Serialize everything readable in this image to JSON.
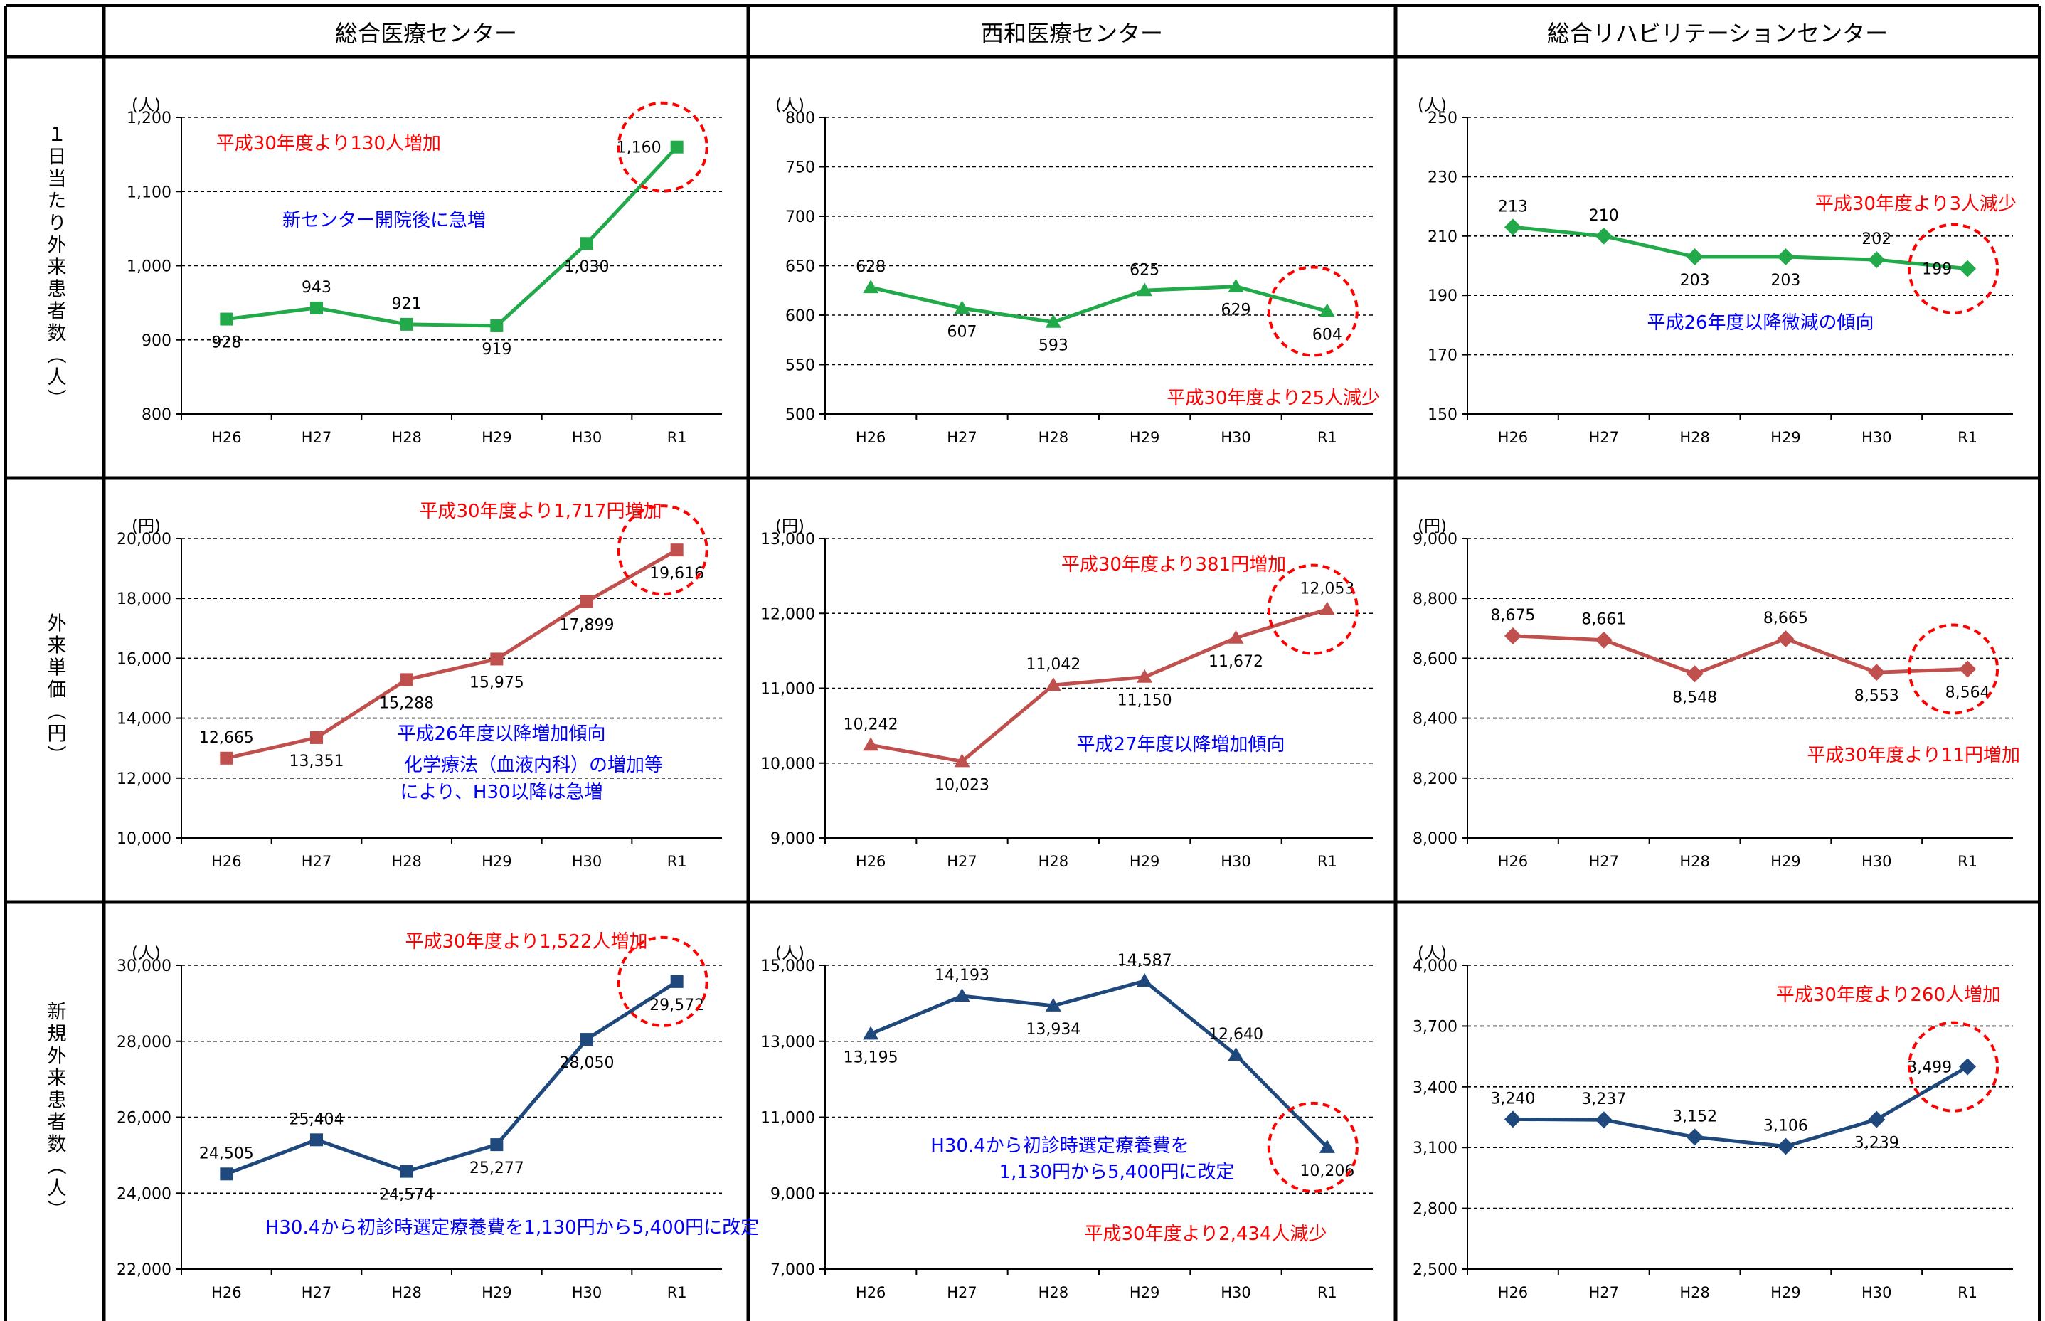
{
  "columns": [
    "総合医療センター",
    "西和医療センター",
    "総合リハビリテーションセンター"
  ],
  "rows": [
    {
      "label": "１日当たり外来患者数（人）"
    },
    {
      "label": "外来単価（円）"
    },
    {
      "label": "新規外来患者数（人）"
    }
  ],
  "colors": {
    "green": "#21a94a",
    "red": "#c0504d",
    "blue": "#1f497d",
    "annot_red": "#ff0000",
    "annot_blue": "#0000ff",
    "circle": "#ff0000"
  },
  "chart_data": [
    {
      "type": "line",
      "row": 0,
      "col": 0,
      "unit": "(人)",
      "categories": [
        "H26",
        "H27",
        "H28",
        "H29",
        "H30",
        "R1"
      ],
      "values": [
        928,
        943,
        921,
        919,
        1030,
        1160
      ],
      "labels": [
        "928",
        "943",
        "921",
        "919",
        "1,030",
        "1,160"
      ],
      "ylim": [
        800,
        1200
      ],
      "ticks": [
        800,
        900,
        1000,
        1100,
        1200
      ],
      "tick_labels": [
        "800",
        "900",
        "1,000",
        "1,100",
        "1,200"
      ],
      "marker": "square",
      "color": "green",
      "circled": 5,
      "annotations": [
        {
          "text": "平成30年度より130人増加",
          "color": "red"
        },
        {
          "text": "新センター開院後に急増",
          "color": "blue"
        }
      ]
    },
    {
      "type": "line",
      "row": 0,
      "col": 1,
      "unit": "(人)",
      "categories": [
        "H26",
        "H27",
        "H28",
        "H29",
        "H30",
        "R1"
      ],
      "values": [
        628,
        607,
        593,
        625,
        629,
        604
      ],
      "labels": [
        "628",
        "607",
        "593",
        "625",
        "629",
        "604"
      ],
      "ylim": [
        500,
        800
      ],
      "ticks": [
        500,
        550,
        600,
        650,
        700,
        750,
        800
      ],
      "tick_labels": [
        "500",
        "550",
        "600",
        "650",
        "700",
        "750",
        "800"
      ],
      "marker": "triangle",
      "color": "green",
      "circled": 5,
      "annotations": [
        {
          "text": "平成30年度より25人減少",
          "color": "red"
        }
      ]
    },
    {
      "type": "line",
      "row": 0,
      "col": 2,
      "unit": "(人)",
      "categories": [
        "H26",
        "H27",
        "H28",
        "H29",
        "H30",
        "R1"
      ],
      "values": [
        213,
        210,
        203,
        203,
        202,
        199
      ],
      "labels": [
        "213",
        "210",
        "203",
        "203",
        "202",
        "199"
      ],
      "ylim": [
        150,
        250
      ],
      "ticks": [
        150,
        170,
        190,
        210,
        230,
        250
      ],
      "tick_labels": [
        "150",
        "170",
        "190",
        "210",
        "230",
        "250"
      ],
      "marker": "diamond",
      "color": "green",
      "circled": 5,
      "annotations": [
        {
          "text": "平成30年度より3人減少",
          "color": "red"
        },
        {
          "text": "平成26年度以降微減の傾向",
          "color": "blue"
        }
      ]
    },
    {
      "type": "line",
      "row": 1,
      "col": 0,
      "unit": "(円)",
      "categories": [
        "H26",
        "H27",
        "H28",
        "H29",
        "H30",
        "R1"
      ],
      "values": [
        12665,
        13351,
        15288,
        15975,
        17899,
        19616
      ],
      "labels": [
        "12,665",
        "13,351",
        "15,288",
        "15,975",
        "17,899",
        "19,616"
      ],
      "ylim": [
        10000,
        20000
      ],
      "ticks": [
        10000,
        12000,
        14000,
        16000,
        18000,
        20000
      ],
      "tick_labels": [
        "10,000",
        "12,000",
        "14,000",
        "16,000",
        "18,000",
        "20,000"
      ],
      "marker": "square",
      "color": "red",
      "circled": 5,
      "annotations": [
        {
          "text": "平成30年度より1,717円増加",
          "color": "red"
        },
        {
          "text": "平成26年度以降増加傾向",
          "color": "blue"
        },
        {
          "text": "化学療法（血液内科）の増加等",
          "color": "blue"
        },
        {
          "text": "により、H30以降は急増",
          "color": "blue"
        }
      ]
    },
    {
      "type": "line",
      "row": 1,
      "col": 1,
      "unit": "(円)",
      "categories": [
        "H26",
        "H27",
        "H28",
        "H29",
        "H30",
        "R1"
      ],
      "values": [
        10242,
        10023,
        11042,
        11150,
        11672,
        12053
      ],
      "labels": [
        "10,242",
        "10,023",
        "11,042",
        "11,150",
        "11,672",
        "12,053"
      ],
      "ylim": [
        9000,
        13000
      ],
      "ticks": [
        9000,
        10000,
        11000,
        12000,
        13000
      ],
      "tick_labels": [
        "9,000",
        "10,000",
        "11,000",
        "12,000",
        "13,000"
      ],
      "marker": "triangle",
      "color": "red",
      "circled": 5,
      "annotations": [
        {
          "text": "平成30年度より381円増加",
          "color": "red"
        },
        {
          "text": "平成27年度以降増加傾向",
          "color": "blue"
        }
      ]
    },
    {
      "type": "line",
      "row": 1,
      "col": 2,
      "unit": "(円)",
      "categories": [
        "H26",
        "H27",
        "H28",
        "H29",
        "H30",
        "R1"
      ],
      "values": [
        8675,
        8661,
        8548,
        8665,
        8553,
        8564
      ],
      "labels": [
        "8,675",
        "8,661",
        "8,548",
        "8,665",
        "8,553",
        "8,564"
      ],
      "ylim": [
        8000,
        9000
      ],
      "ticks": [
        8000,
        8200,
        8400,
        8600,
        8800,
        9000
      ],
      "tick_labels": [
        "8,000",
        "8,200",
        "8,400",
        "8,600",
        "8,800",
        "9,000"
      ],
      "marker": "diamond",
      "color": "red",
      "circled": 5,
      "annotations": [
        {
          "text": "平成30年度より11円増加",
          "color": "red"
        }
      ]
    },
    {
      "type": "line",
      "row": 2,
      "col": 0,
      "unit": "(人)",
      "categories": [
        "H26",
        "H27",
        "H28",
        "H29",
        "H30",
        "R1"
      ],
      "values": [
        24505,
        25404,
        24574,
        25277,
        28050,
        29572
      ],
      "labels": [
        "24,505",
        "25,404",
        "24,574",
        "25,277",
        "28,050",
        "29,572"
      ],
      "ylim": [
        22000,
        30000
      ],
      "ticks": [
        22000,
        24000,
        26000,
        28000,
        30000
      ],
      "tick_labels": [
        "22,000",
        "24,000",
        "26,000",
        "28,000",
        "30,000"
      ],
      "marker": "square",
      "color": "blue",
      "circled": 5,
      "annotations": [
        {
          "text": "平成30年度より1,522人増加",
          "color": "red"
        },
        {
          "text": "H30.4から初診時選定療養費を1,130円から5,400円に改定",
          "color": "blue"
        }
      ]
    },
    {
      "type": "line",
      "row": 2,
      "col": 1,
      "unit": "(人)",
      "categories": [
        "H26",
        "H27",
        "H28",
        "H29",
        "H30",
        "R1"
      ],
      "values": [
        13195,
        14193,
        13934,
        14587,
        12640,
        10206
      ],
      "labels": [
        "13,195",
        "14,193",
        "13,934",
        "14,587",
        "12,640",
        "10,206"
      ],
      "ylim": [
        7000,
        15000
      ],
      "ticks": [
        7000,
        9000,
        11000,
        13000,
        15000
      ],
      "tick_labels": [
        "7,000",
        "9,000",
        "11,000",
        "13,000",
        "15,000"
      ],
      "marker": "triangle",
      "color": "blue",
      "circled": 5,
      "annotations": [
        {
          "text": "H30.4から初診時選定療養費を",
          "color": "blue"
        },
        {
          "text": "1,130円から5,400円に改定",
          "color": "blue"
        },
        {
          "text": "平成30年度より2,434人減少",
          "color": "red"
        }
      ]
    },
    {
      "type": "line",
      "row": 2,
      "col": 2,
      "unit": "(人)",
      "categories": [
        "H26",
        "H27",
        "H28",
        "H29",
        "H30",
        "R1"
      ],
      "values": [
        3240,
        3237,
        3152,
        3106,
        3239,
        3499
      ],
      "labels": [
        "3,240",
        "3,237",
        "3,152",
        "3,106",
        "3,239",
        "3,499"
      ],
      "ylim": [
        2500,
        4000
      ],
      "ticks": [
        2500,
        2800,
        3100,
        3400,
        3700,
        4000
      ],
      "tick_labels": [
        "2,500",
        "2,800",
        "3,100",
        "3,400",
        "3,700",
        "4,000"
      ],
      "marker": "diamond",
      "color": "blue",
      "circled": 5,
      "annotations": [
        {
          "text": "平成30年度より260人増加",
          "color": "red"
        }
      ]
    }
  ]
}
